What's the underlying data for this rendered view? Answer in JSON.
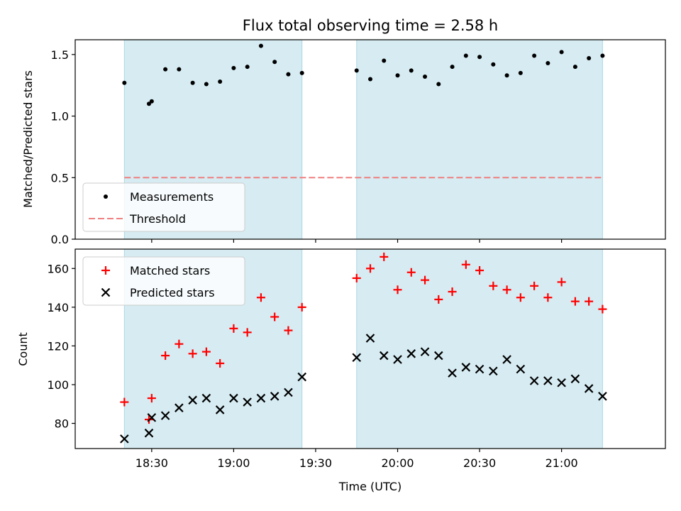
{
  "title": "Flux total observing time = 2.58 h",
  "colors": {
    "shade": "#add8e6",
    "threshold": "#f08080",
    "matched": "#ff0000",
    "predicted": "#000000",
    "measurement": "#000000"
  },
  "chart_data": [
    {
      "type": "scatter",
      "ylabel": "Matched/Predicted stars",
      "ylim": [
        0,
        1.62
      ],
      "yticks": [
        0.0,
        0.5,
        1.0,
        1.5
      ],
      "yticklabels": [
        "0.0",
        "0.5",
        "1.0",
        "1.5"
      ],
      "x_unit": "minutes of day (UTC)",
      "xlim": [
        1082,
        1298
      ],
      "shaded_intervals": [
        [
          1100,
          1165
        ],
        [
          1185,
          1275
        ]
      ],
      "legend": {
        "position": "lower-left",
        "entries": [
          "Measurements",
          "Threshold"
        ]
      },
      "series": [
        {
          "name": "Measurements",
          "marker": "dot",
          "x": [
            1100,
            1109,
            1110,
            1115,
            1120,
            1125,
            1130,
            1135,
            1140,
            1145,
            1150,
            1155,
            1160,
            1165,
            1185,
            1190,
            1195,
            1200,
            1205,
            1210,
            1215,
            1220,
            1225,
            1230,
            1235,
            1240,
            1245,
            1250,
            1255,
            1260,
            1265,
            1270,
            1275
          ],
          "y": [
            1.27,
            1.1,
            1.12,
            1.38,
            1.38,
            1.27,
            1.26,
            1.28,
            1.39,
            1.4,
            1.57,
            1.44,
            1.34,
            1.35,
            1.37,
            1.3,
            1.45,
            1.33,
            1.37,
            1.32,
            1.26,
            1.4,
            1.49,
            1.48,
            1.42,
            1.33,
            1.35,
            1.49,
            1.43,
            1.52,
            1.4,
            1.47,
            1.49
          ]
        },
        {
          "name": "Threshold",
          "marker": "dashed-line",
          "x": [
            1100,
            1275
          ],
          "y": [
            0.5,
            0.5
          ]
        }
      ]
    },
    {
      "type": "scatter",
      "title": "",
      "xlabel": "Time (UTC)",
      "ylabel": "Count",
      "ylim": [
        67,
        170
      ],
      "yticks": [
        80,
        100,
        120,
        140,
        160
      ],
      "yticklabels": [
        "80",
        "100",
        "120",
        "140",
        "160"
      ],
      "x_unit": "minutes of day (UTC)",
      "xlim": [
        1082,
        1298
      ],
      "xticks": [
        1110,
        1140,
        1170,
        1200,
        1230,
        1260
      ],
      "xticklabels": [
        "18:30",
        "19:00",
        "19:30",
        "20:00",
        "20:30",
        "21:00"
      ],
      "shaded_intervals": [
        [
          1100,
          1165
        ],
        [
          1185,
          1275
        ]
      ],
      "legend": {
        "position": "top-left",
        "entries": [
          "Matched stars",
          "Predicted stars"
        ]
      },
      "series": [
        {
          "name": "Matched stars",
          "marker": "plus",
          "x": [
            1100,
            1109,
            1110,
            1115,
            1120,
            1125,
            1130,
            1135,
            1140,
            1145,
            1150,
            1155,
            1160,
            1165,
            1185,
            1190,
            1195,
            1200,
            1205,
            1210,
            1215,
            1220,
            1225,
            1230,
            1235,
            1240,
            1245,
            1250,
            1255,
            1260,
            1265,
            1270,
            1275
          ],
          "y": [
            91,
            82,
            93,
            115,
            121,
            116,
            117,
            111,
            129,
            127,
            145,
            135,
            128,
            140,
            155,
            160,
            166,
            149,
            158,
            154,
            144,
            148,
            162,
            159,
            151,
            149,
            145,
            151,
            145,
            153,
            143,
            143,
            139
          ]
        },
        {
          "name": "Predicted stars",
          "marker": "x",
          "x": [
            1100,
            1109,
            1110,
            1115,
            1120,
            1125,
            1130,
            1135,
            1140,
            1145,
            1150,
            1155,
            1160,
            1165,
            1185,
            1190,
            1195,
            1200,
            1205,
            1210,
            1215,
            1220,
            1225,
            1230,
            1235,
            1240,
            1245,
            1250,
            1255,
            1260,
            1265,
            1270,
            1275
          ],
          "y": [
            72,
            75,
            83,
            84,
            88,
            92,
            93,
            87,
            93,
            91,
            93,
            94,
            96,
            104,
            114,
            124,
            115,
            113,
            116,
            117,
            115,
            106,
            109,
            108,
            107,
            113,
            108,
            102,
            102,
            101,
            103,
            98,
            94
          ]
        }
      ]
    }
  ]
}
